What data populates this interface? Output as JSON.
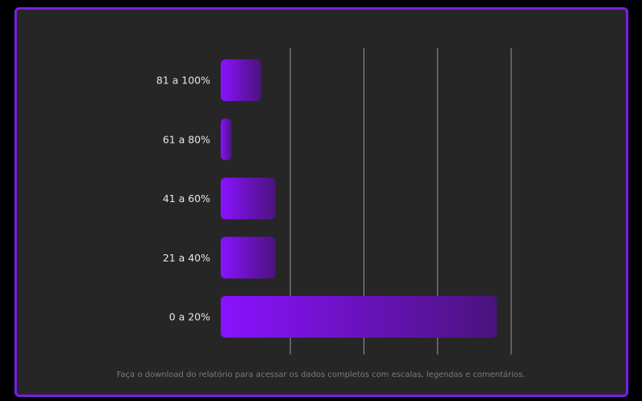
{
  "chart_data": {
    "type": "bar",
    "orientation": "horizontal",
    "categories": [
      "81 a 100%",
      "61 a 80%",
      "41 a 60%",
      "21 a 40%",
      "0 a 20%"
    ],
    "values": [
      5.5,
      1.5,
      7.5,
      7.5,
      37.5
    ],
    "xlim": [
      0,
      40
    ],
    "grid": true,
    "title": "",
    "xlabel": "",
    "ylabel": ""
  },
  "footnote": "Faça o download do relatório para acessar os dados completos com escalas, legendas e comentários.",
  "colors": {
    "border": "#7a1fe6",
    "background": "#262626",
    "bar_start": "#8a12ff",
    "bar_end": "#4a137d",
    "grid": "#9a9a9a",
    "label": "#e6e6e6"
  }
}
